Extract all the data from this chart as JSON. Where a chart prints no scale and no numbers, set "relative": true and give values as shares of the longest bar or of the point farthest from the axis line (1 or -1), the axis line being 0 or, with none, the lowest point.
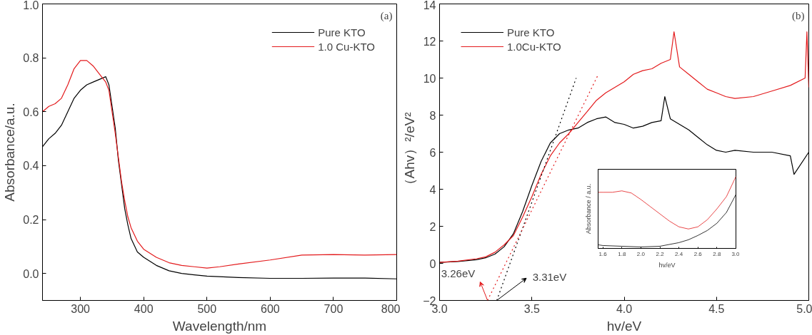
{
  "chart_data": [
    {
      "type": "line",
      "xlabel": "Wavelength/nm",
      "ylabel": "Absorbance/a.u.",
      "xlim": [
        240,
        800
      ],
      "ylim": [
        -0.1,
        1.0
      ],
      "xticks": [
        300,
        400,
        500,
        600,
        700,
        800
      ],
      "yticks": [
        {
          "value": 0,
          "label": "0.0"
        },
        {
          "value": 0.2,
          "label": "0.2"
        },
        {
          "value": 0.4,
          "label": "0.4"
        },
        {
          "value": 0.6,
          "label": "0.6"
        },
        {
          "value": 0.8,
          "label": "0.8"
        },
        {
          "value": 1.0,
          "label": "1.0"
        }
      ],
      "legend": "top right",
      "annotations": [
        "(a)"
      ],
      "series": [
        {
          "name": "Pure KTO",
          "color": "#000000",
          "x": [
            240,
            250,
            260,
            270,
            280,
            290,
            300,
            310,
            320,
            330,
            340,
            345,
            350,
            355,
            360,
            365,
            370,
            375,
            380,
            390,
            400,
            420,
            440,
            460,
            480,
            500,
            550,
            600,
            650,
            700,
            750,
            800
          ],
          "values": [
            0.47,
            0.5,
            0.52,
            0.55,
            0.6,
            0.65,
            0.68,
            0.7,
            0.71,
            0.72,
            0.73,
            0.7,
            0.62,
            0.54,
            0.42,
            0.33,
            0.24,
            0.18,
            0.13,
            0.08,
            0.06,
            0.03,
            0.01,
            0.0,
            -0.005,
            -0.01,
            -0.015,
            -0.018,
            -0.018,
            -0.017,
            -0.017,
            -0.02
          ]
        },
        {
          "name": "1.0 Cu-KTO",
          "color": "#e31a1c",
          "x": [
            240,
            250,
            260,
            270,
            280,
            290,
            300,
            310,
            320,
            330,
            340,
            345,
            350,
            355,
            360,
            365,
            370,
            375,
            380,
            390,
            400,
            420,
            440,
            460,
            480,
            500,
            520,
            550,
            600,
            650,
            700,
            750,
            800
          ],
          "values": [
            0.6,
            0.62,
            0.63,
            0.65,
            0.7,
            0.76,
            0.79,
            0.79,
            0.77,
            0.74,
            0.71,
            0.68,
            0.6,
            0.52,
            0.43,
            0.34,
            0.27,
            0.21,
            0.17,
            0.12,
            0.09,
            0.06,
            0.04,
            0.03,
            0.025,
            0.02,
            0.025,
            0.035,
            0.05,
            0.068,
            0.07,
            0.068,
            0.07
          ]
        }
      ]
    },
    {
      "type": "line",
      "xlabel": "hv/eV",
      "ylabel": "（Ahv）²/eV²",
      "xlim": [
        3.0,
        5.0
      ],
      "ylim": [
        -2,
        14
      ],
      "xticks": [
        {
          "value": 3.0,
          "label": "3.0"
        },
        {
          "value": 3.5,
          "label": "3.5"
        },
        {
          "value": 4.0,
          "label": "4.0"
        },
        {
          "value": 4.5,
          "label": "4.5"
        },
        {
          "value": 5.0,
          "label": "5.0"
        }
      ],
      "yticks": [
        -2,
        0,
        2,
        4,
        6,
        8,
        10,
        12,
        14
      ],
      "legend": "top left",
      "annotations": [
        "(b)",
        {
          "text": "3.26eV",
          "x": 3.26,
          "y": -2
        },
        {
          "text": "3.31eV",
          "x": 3.31,
          "y": -2
        }
      ],
      "series": [
        {
          "name": "Pure KTO",
          "color": "#000000",
          "x": [
            3.0,
            3.1,
            3.2,
            3.25,
            3.3,
            3.35,
            3.4,
            3.45,
            3.5,
            3.55,
            3.6,
            3.65,
            3.7,
            3.75,
            3.8,
            3.85,
            3.9,
            3.95,
            4.0,
            4.05,
            4.1,
            4.15,
            4.2,
            4.22,
            4.25,
            4.3,
            4.35,
            4.4,
            4.45,
            4.5,
            4.55,
            4.6,
            4.7,
            4.8,
            4.9,
            4.92,
            5.0
          ],
          "values": [
            0.05,
            0.1,
            0.2,
            0.3,
            0.5,
            0.9,
            1.6,
            2.8,
            4.2,
            5.5,
            6.5,
            7.0,
            7.2,
            7.3,
            7.6,
            7.8,
            7.9,
            7.6,
            7.5,
            7.3,
            7.4,
            7.6,
            7.7,
            9.0,
            7.8,
            7.5,
            7.2,
            6.8,
            6.4,
            6.1,
            6.0,
            6.1,
            6.0,
            6.0,
            5.8,
            4.8,
            6.0
          ]
        },
        {
          "name": "1.0Cu-KTO",
          "color": "#e31a1c",
          "x": [
            3.0,
            3.1,
            3.2,
            3.25,
            3.3,
            3.35,
            3.4,
            3.45,
            3.5,
            3.55,
            3.6,
            3.65,
            3.7,
            3.75,
            3.8,
            3.85,
            3.9,
            3.95,
            4.0,
            4.05,
            4.1,
            4.15,
            4.2,
            4.25,
            4.27,
            4.3,
            4.35,
            4.4,
            4.45,
            4.5,
            4.55,
            4.6,
            4.7,
            4.8,
            4.9,
            4.98,
            4.99,
            5.0
          ],
          "values": [
            0.05,
            0.12,
            0.25,
            0.35,
            0.6,
            1.0,
            1.5,
            2.5,
            3.6,
            4.8,
            5.8,
            6.5,
            7.0,
            7.6,
            8.2,
            8.8,
            9.2,
            9.5,
            9.8,
            10.2,
            10.4,
            10.5,
            10.8,
            11.0,
            12.5,
            10.6,
            10.2,
            9.8,
            9.4,
            9.2,
            9.0,
            8.9,
            9.0,
            9.3,
            9.6,
            10.0,
            12.5,
            9.5
          ]
        },
        {
          "type": "line",
          "line_style": "dotted",
          "color": "#000000",
          "x": [
            3.31,
            3.74
          ],
          "values": [
            -2,
            10
          ]
        },
        {
          "type": "line",
          "line_style": "dotted",
          "color": "#e31a1c",
          "x": [
            3.26,
            3.86
          ],
          "values": [
            -2,
            10.2
          ]
        }
      ]
    },
    {
      "type": "line",
      "relative": true,
      "xlabel": "hv/eV",
      "ylabel": "Absorbance / a.u.",
      "xlim": [
        1.55,
        3.0
      ],
      "xticks": [
        {
          "value": 1.6,
          "label": "1.6"
        },
        {
          "value": 1.8,
          "label": "1.8"
        },
        {
          "value": 2.0,
          "label": "2.0"
        },
        {
          "value": 2.2,
          "label": "2.2"
        },
        {
          "value": 2.4,
          "label": "2.4"
        },
        {
          "value": 2.6,
          "label": "2.6"
        },
        {
          "value": 2.8,
          "label": "2.8"
        },
        {
          "value": 3.0,
          "label": "3.0"
        }
      ],
      "tick_labels": "x",
      "series": [
        {
          "color": "#000000",
          "x": [
            1.55,
            1.6,
            1.8,
            2.0,
            2.2,
            2.4,
            2.5,
            2.6,
            2.7,
            2.8,
            2.9,
            3.0
          ],
          "values": [
            0.05,
            0.04,
            0.03,
            0.02,
            0.03,
            0.08,
            0.12,
            0.18,
            0.25,
            0.35,
            0.5,
            0.75
          ]
        },
        {
          "color": "#e31a1c",
          "x": [
            1.55,
            1.6,
            1.7,
            1.8,
            1.9,
            2.0,
            2.1,
            2.2,
            2.3,
            2.4,
            2.5,
            2.6,
            2.7,
            2.8,
            2.9,
            3.0
          ],
          "values": [
            0.78,
            0.78,
            0.78,
            0.8,
            0.77,
            0.68,
            0.58,
            0.48,
            0.38,
            0.3,
            0.27,
            0.3,
            0.4,
            0.55,
            0.72,
            1.0
          ]
        }
      ]
    }
  ]
}
